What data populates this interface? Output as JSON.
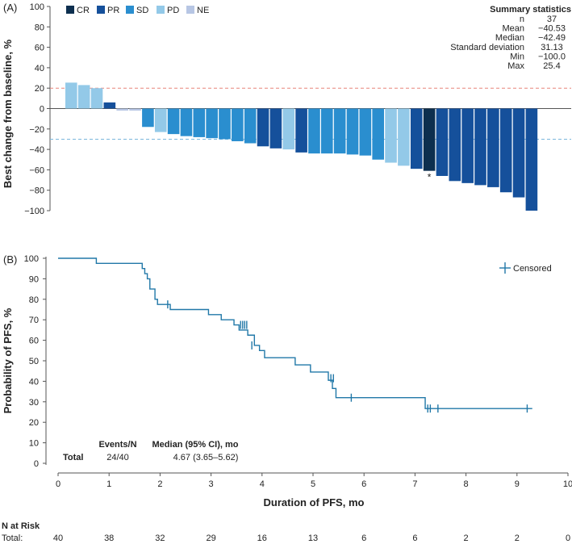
{
  "panel_a_label": "(A)",
  "panel_b_label": "(B)",
  "legend_a": [
    {
      "label": "CR",
      "color": "#0d2f4f"
    },
    {
      "label": "PR",
      "color": "#15509b"
    },
    {
      "label": "SD",
      "color": "#2a8ecf"
    },
    {
      "label": "PD",
      "color": "#93c9e8"
    },
    {
      "label": "NE",
      "color": "#b7c6e4"
    }
  ],
  "summary": {
    "title": "Summary statistics",
    "rows": [
      {
        "label": "n",
        "value": "37"
      },
      {
        "label": "Mean",
        "value": "−40.53"
      },
      {
        "label": "Median",
        "value": "−42.49"
      },
      {
        "label": "Standard deviation",
        "value": "31.13"
      },
      {
        "label": "Min",
        "value": "−100.0"
      },
      {
        "label": "Max",
        "value": "25.4"
      }
    ]
  },
  "censored_label": "Censored",
  "events_table": {
    "header_events": "Events/N",
    "header_median": "Median (95% CI), mo",
    "row_label": "Total",
    "events": "24/40",
    "median": "4.67 (3.65–5.62)"
  },
  "risk": {
    "title": "N at Risk",
    "row_label": "Total:",
    "values": [
      "40",
      "38",
      "32",
      "29",
      "16",
      "13",
      "6",
      "6",
      "2",
      "2",
      "0"
    ]
  },
  "chart_data": [
    {
      "type": "bar",
      "title": "",
      "xlabel": "",
      "ylabel": "Best change from baseline, %",
      "ylim": [
        -100,
        100
      ],
      "yticks": [
        -100,
        -80,
        -60,
        -40,
        -20,
        0,
        20,
        40,
        60,
        80,
        100
      ],
      "reference_lines": [
        20,
        -30
      ],
      "annotation": {
        "text": "*",
        "bar_index": 28
      },
      "categories": [
        "PD",
        "PD",
        "PD",
        "PR",
        "NE",
        "NE",
        "SD",
        "PD",
        "SD",
        "SD",
        "SD",
        "SD",
        "SD",
        "SD",
        "SD",
        "PR",
        "PR",
        "PD",
        "PR",
        "SD",
        "SD",
        "SD",
        "SD",
        "SD",
        "SD",
        "PD",
        "PD",
        "PR",
        "CR",
        "PR",
        "PR",
        "PR",
        "PR",
        "PR",
        "PR",
        "PR",
        "PR"
      ],
      "values": [
        25.4,
        23,
        20,
        6,
        -2,
        -2,
        -18,
        -23,
        -25,
        -27,
        -28,
        -29,
        -30,
        -32,
        -34,
        -37,
        -39,
        -40,
        -43,
        -44,
        -44,
        -44,
        -45,
        -46,
        -50,
        -53,
        -56,
        -59,
        -61,
        -66,
        -71,
        -73,
        -75,
        -77,
        -82,
        -87,
        -100.0
      ]
    },
    {
      "type": "line",
      "title": "",
      "xlabel": "Duration of PFS, mo",
      "ylabel": "Probability of PFS, %",
      "xlim": [
        0,
        10
      ],
      "ylim": [
        0,
        100
      ],
      "xticks": [
        0,
        1,
        2,
        3,
        4,
        5,
        6,
        7,
        8,
        9,
        10
      ],
      "yticks": [
        0,
        10,
        20,
        30,
        40,
        50,
        60,
        70,
        80,
        90,
        100
      ],
      "series": [
        {
          "name": "Total",
          "x": [
            0,
            0.65,
            0.75,
            1.65,
            1.7,
            1.75,
            1.8,
            1.9,
            1.95,
            2.05,
            2.2,
            2.95,
            3.2,
            3.45,
            3.55,
            3.72,
            3.85,
            3.95,
            4.05,
            4.65,
            4.95,
            5.3,
            5.38,
            5.45,
            7.2,
            7.3,
            9.3
          ],
          "y": [
            100,
            100,
            97.5,
            95,
            92.5,
            90,
            85,
            80,
            77.5,
            77.5,
            75,
            72.5,
            70,
            67.5,
            65,
            62.5,
            57.5,
            55,
            51.5,
            48,
            44.5,
            40.5,
            36.5,
            32,
            26.7,
            26.7,
            26.7
          ]
        }
      ],
      "censored": {
        "name": "Censored",
        "x": [
          2.15,
          3.58,
          3.62,
          3.66,
          3.7,
          3.8,
          5.35,
          5.4,
          5.75,
          7.25,
          7.3,
          7.45,
          9.2
        ],
        "y": [
          77.5,
          67.5,
          67.5,
          67.5,
          67.5,
          57.5,
          41.5,
          41.5,
          32,
          26.7,
          26.7,
          26.7,
          26.7
        ]
      },
      "events": "24/40",
      "median": "4.67 (3.65–5.62)"
    }
  ]
}
